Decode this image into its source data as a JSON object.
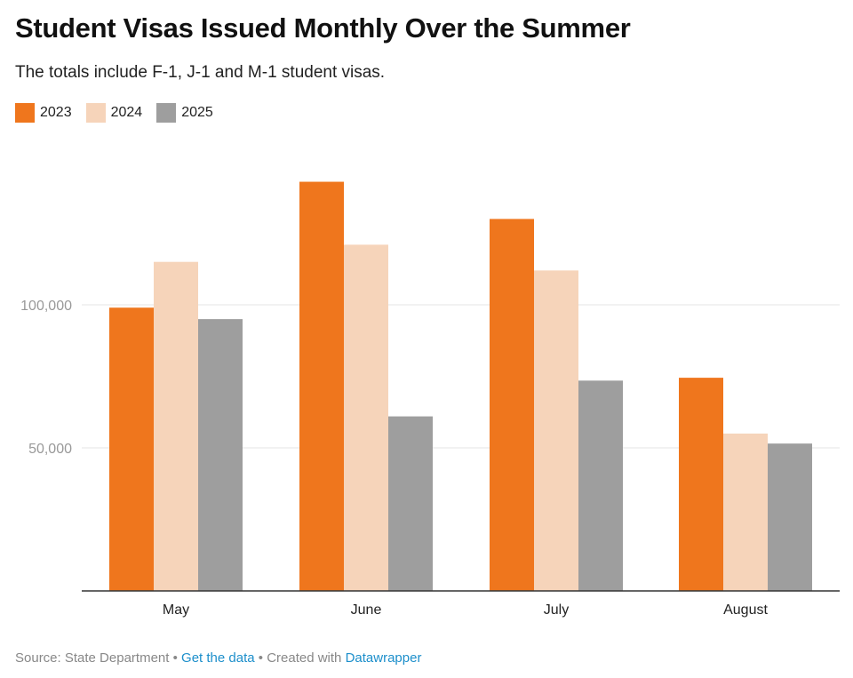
{
  "header": {
    "title": "Student Visas Issued Monthly Over the Summer",
    "subtitle": "The totals include F-1, J-1 and M-1 student visas."
  },
  "legend": [
    {
      "label": "2023",
      "color": "#ef761d"
    },
    {
      "label": "2024",
      "color": "#f6d4ba"
    },
    {
      "label": "2025",
      "color": "#9e9e9e"
    }
  ],
  "chart_data": {
    "type": "bar",
    "categories": [
      "May",
      "June",
      "July",
      "August"
    ],
    "series": [
      {
        "name": "2023",
        "values": [
          99000,
          143000,
          130000,
          74500
        ],
        "color": "#ef761d"
      },
      {
        "name": "2024",
        "values": [
          115000,
          121000,
          112000,
          55000
        ],
        "color": "#f6d4ba"
      },
      {
        "name": "2025",
        "values": [
          95000,
          61000,
          73500,
          51500
        ],
        "color": "#9e9e9e"
      }
    ],
    "yticks": [
      {
        "value": 50000,
        "label": "50,000"
      },
      {
        "value": 100000,
        "label": "100,000"
      }
    ],
    "ylim": [
      0,
      160000
    ],
    "grid": true,
    "legend_position": "top-left"
  },
  "footer": {
    "source_text": "Source: State Department",
    "separator": " • ",
    "get_data_label": "Get the data",
    "created_with_text": "Created with",
    "datawrapper_label": "Datawrapper"
  }
}
